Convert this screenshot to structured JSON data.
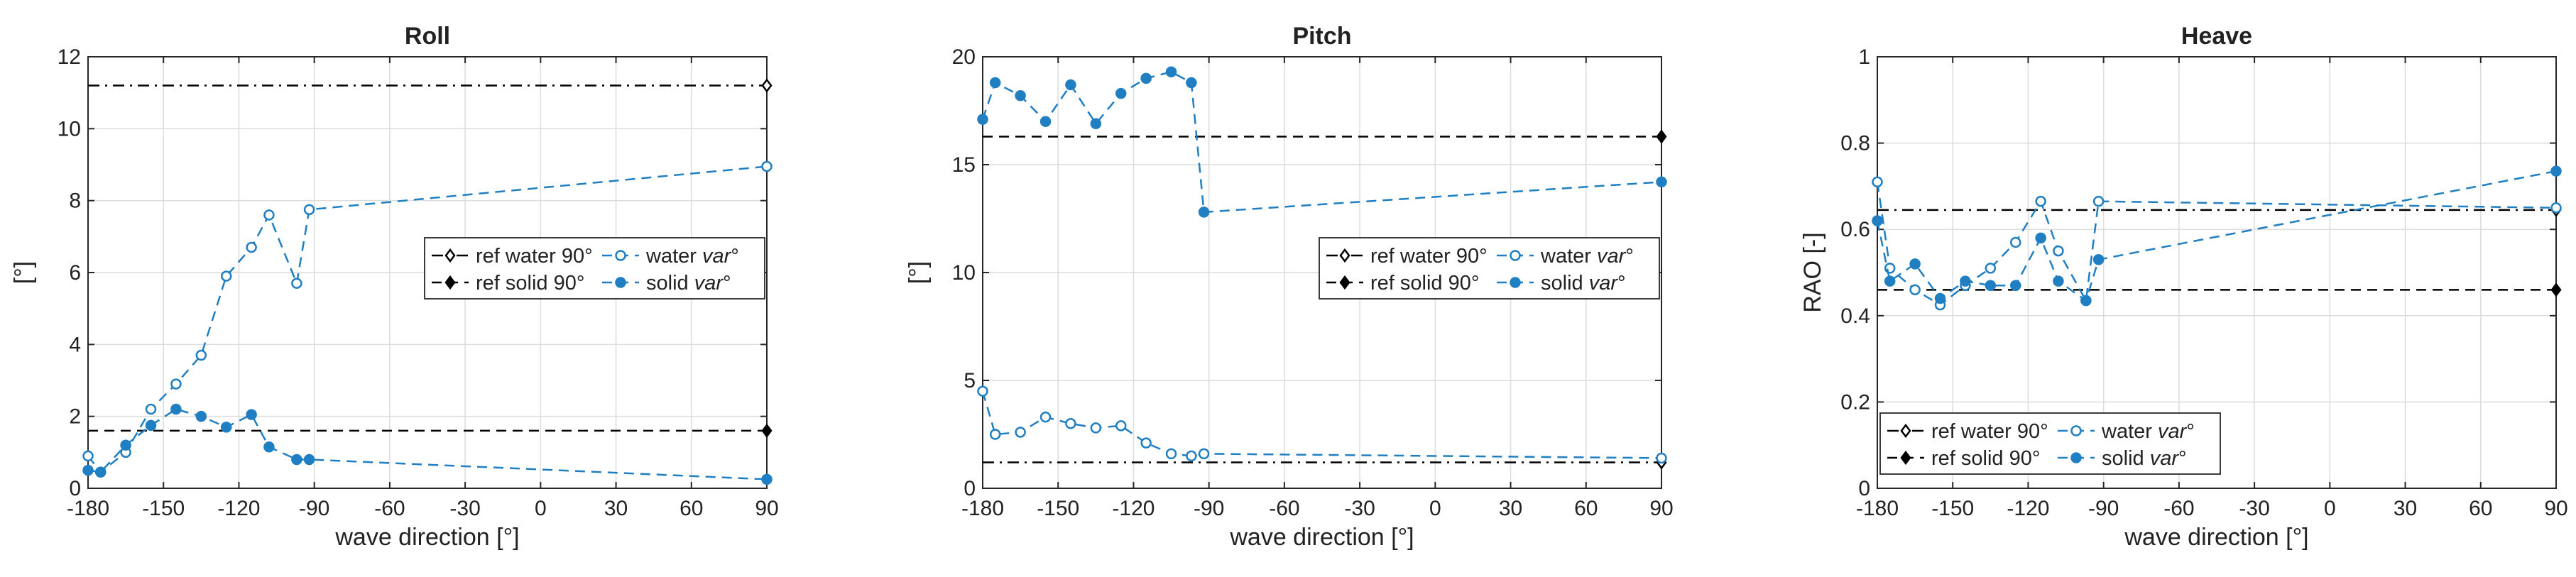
{
  "colors": {
    "blue": "#1f7fc2",
    "black": "#000000",
    "grid": "#dcdcdc",
    "axis": "#262626"
  },
  "chart_data": [
    {
      "type": "line",
      "title": "Roll",
      "xlabel": "wave direction [°]",
      "ylabel": "[°]",
      "xlim": [
        -180,
        90
      ],
      "ylim": [
        0,
        12
      ],
      "xticks": [
        -180,
        -150,
        -120,
        -90,
        -60,
        -30,
        0,
        30,
        60,
        90
      ],
      "xtick_labels": [
        "-180",
        "-150",
        "-120",
        "-90",
        "-60",
        "-30",
        "0",
        "30",
        "60",
        "90"
      ],
      "yticks": [
        0,
        2,
        4,
        6,
        8,
        10,
        12
      ],
      "ytick_labels": [
        "0",
        "2",
        "4",
        "6",
        "8",
        "10",
        "12"
      ],
      "grid": true,
      "legend_location": "center-right",
      "legend_columns": 2,
      "series": [
        {
          "name": "ref water 90°",
          "style": "dashdot",
          "marker": "diamond-open",
          "color": "#000000",
          "x": [
            -180,
            90
          ],
          "y": [
            11.2,
            11.2
          ]
        },
        {
          "name": "ref solid 90°",
          "style": "dashed",
          "marker": "diamond-filled",
          "color": "#000000",
          "x": [
            -180,
            90
          ],
          "y": [
            1.6,
            1.6
          ]
        },
        {
          "name": "water var°",
          "style": "dashed",
          "marker": "circle-open",
          "color": "#1f7fc2",
          "x": [
            -180,
            -175,
            -165,
            -155,
            -145,
            -135,
            -125,
            -115,
            -108,
            -97,
            -92,
            90
          ],
          "y": [
            0.9,
            0.45,
            1.0,
            2.2,
            2.9,
            3.7,
            5.9,
            6.7,
            7.6,
            5.7,
            7.75,
            8.95
          ]
        },
        {
          "name": "solid var°",
          "style": "dashed",
          "marker": "circle-filled",
          "color": "#1f7fc2",
          "x": [
            -180,
            -175,
            -165,
            -155,
            -145,
            -135,
            -125,
            -115,
            -108,
            -97,
            -92,
            90
          ],
          "y": [
            0.5,
            0.45,
            1.2,
            1.75,
            2.2,
            2.0,
            1.7,
            2.05,
            1.15,
            0.8,
            0.8,
            0.25
          ]
        }
      ],
      "legend_labels": [
        {
          "pre": "ref water 90°",
          "italic": ""
        },
        {
          "pre": "water ",
          "italic": "var"
        },
        {
          "pre": "ref solid 90°",
          "italic": ""
        },
        {
          "pre": "solid ",
          "italic": "var"
        }
      ]
    },
    {
      "type": "line",
      "title": "Pitch",
      "xlabel": "wave direction [°]",
      "ylabel": "[°]",
      "xlim": [
        -180,
        90
      ],
      "ylim": [
        0,
        20
      ],
      "xticks": [
        -180,
        -150,
        -120,
        -90,
        -60,
        -30,
        0,
        30,
        60,
        90
      ],
      "xtick_labels": [
        "-180",
        "-150",
        "-120",
        "-90",
        "-60",
        "-30",
        "0",
        "30",
        "60",
        "90"
      ],
      "yticks": [
        0,
        5,
        10,
        15,
        20
      ],
      "ytick_labels": [
        "0",
        "5",
        "10",
        "15",
        "20"
      ],
      "grid": true,
      "legend_location": "center-right",
      "legend_columns": 2,
      "series": [
        {
          "name": "ref water 90°",
          "style": "dashdot",
          "marker": "diamond-open",
          "color": "#000000",
          "x": [
            -180,
            90
          ],
          "y": [
            1.2,
            1.2
          ]
        },
        {
          "name": "ref solid 90°",
          "style": "dashed",
          "marker": "diamond-filled",
          "color": "#000000",
          "x": [
            -180,
            90
          ],
          "y": [
            16.3,
            16.3
          ]
        },
        {
          "name": "water var°",
          "style": "dashed",
          "marker": "circle-open",
          "color": "#1f7fc2",
          "x": [
            -180,
            -175,
            -165,
            -155,
            -145,
            -135,
            -125,
            -115,
            -105,
            -97,
            -92,
            90
          ],
          "y": [
            4.5,
            2.5,
            2.6,
            3.3,
            3.0,
            2.8,
            2.9,
            2.1,
            1.6,
            1.5,
            1.6,
            1.4
          ]
        },
        {
          "name": "solid var°",
          "style": "dashed",
          "marker": "circle-filled",
          "color": "#1f7fc2",
          "x": [
            -180,
            -175,
            -165,
            -155,
            -145,
            -135,
            -125,
            -115,
            -105,
            -97,
            -92,
            90
          ],
          "y": [
            17.1,
            18.8,
            18.2,
            17.0,
            18.7,
            16.9,
            18.3,
            19.0,
            19.3,
            18.8,
            12.8,
            14.2
          ]
        }
      ],
      "legend_labels": [
        {
          "pre": "ref water 90°",
          "italic": ""
        },
        {
          "pre": "water ",
          "italic": "var"
        },
        {
          "pre": "ref solid 90°",
          "italic": ""
        },
        {
          "pre": "solid ",
          "italic": "var"
        }
      ]
    },
    {
      "type": "line",
      "title": "Heave",
      "xlabel": "wave direction [°]",
      "ylabel": "RAO [-]",
      "xlim": [
        -180,
        90
      ],
      "ylim": [
        0,
        1
      ],
      "xticks": [
        -180,
        -150,
        -120,
        -90,
        -60,
        -30,
        0,
        30,
        60,
        90
      ],
      "xtick_labels": [
        "-180",
        "-150",
        "-120",
        "-90",
        "-60",
        "-30",
        "0",
        "30",
        "60",
        "90"
      ],
      "yticks": [
        0,
        0.2,
        0.4,
        0.6,
        0.8,
        1
      ],
      "ytick_labels": [
        "0",
        "0.2",
        "0.4",
        "0.6",
        "0.8",
        "1"
      ],
      "grid": true,
      "legend_location": "bottom-left",
      "legend_columns": 2,
      "series": [
        {
          "name": "ref water 90°",
          "style": "dashdot",
          "marker": "diamond-open",
          "color": "#000000",
          "x": [
            -180,
            90
          ],
          "y": [
            0.645,
            0.645
          ]
        },
        {
          "name": "ref solid 90°",
          "style": "dashed",
          "marker": "diamond-filled",
          "color": "#000000",
          "x": [
            -180,
            90
          ],
          "y": [
            0.46,
            0.46
          ]
        },
        {
          "name": "water var°",
          "style": "dashed",
          "marker": "circle-open",
          "color": "#1f7fc2",
          "x": [
            -180,
            -175,
            -165,
            -155,
            -145,
            -135,
            -125,
            -115,
            -108,
            -97,
            -92,
            90
          ],
          "y": [
            0.71,
            0.51,
            0.46,
            0.425,
            0.47,
            0.51,
            0.57,
            0.665,
            0.55,
            0.435,
            0.665,
            0.65
          ]
        },
        {
          "name": "solid var°",
          "style": "dashed",
          "marker": "circle-filled",
          "color": "#1f7fc2",
          "x": [
            -180,
            -175,
            -165,
            -155,
            -145,
            -135,
            -125,
            -115,
            -108,
            -97,
            -92,
            90
          ],
          "y": [
            0.62,
            0.48,
            0.52,
            0.44,
            0.48,
            0.47,
            0.47,
            0.58,
            0.48,
            0.435,
            0.53,
            0.735
          ]
        }
      ],
      "legend_labels": [
        {
          "pre": "ref water 90°",
          "italic": ""
        },
        {
          "pre": "water ",
          "italic": "var"
        },
        {
          "pre": "ref solid 90°",
          "italic": ""
        },
        {
          "pre": "solid ",
          "italic": "var"
        }
      ]
    }
  ]
}
